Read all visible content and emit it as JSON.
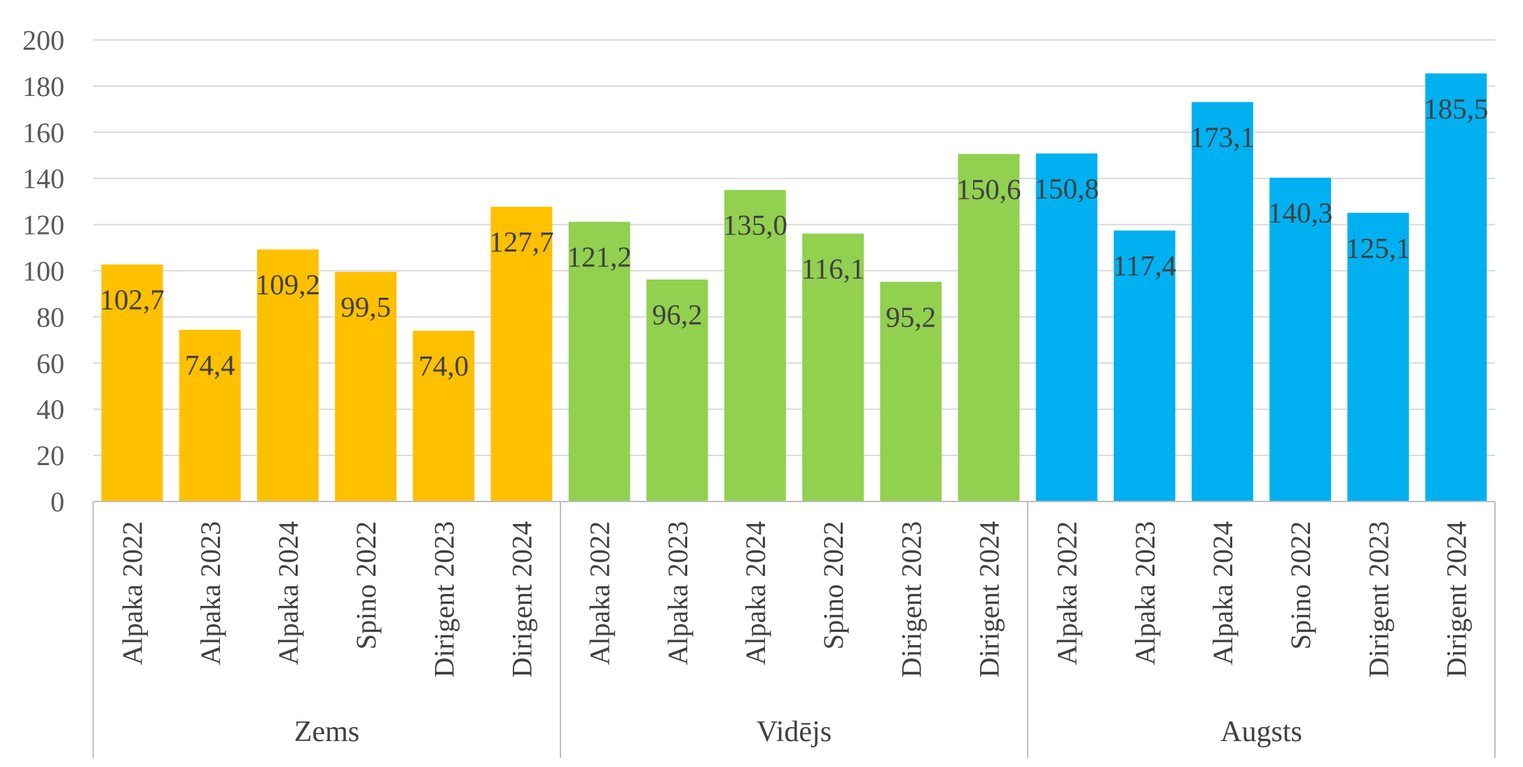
{
  "chart_data": {
    "type": "bar",
    "title": "",
    "xlabel": "",
    "ylabel": "",
    "ylim": [
      0,
      200
    ],
    "yticks": [
      0,
      20,
      40,
      60,
      80,
      100,
      120,
      140,
      160,
      180,
      200
    ],
    "grid": true,
    "legend": "none",
    "groups": [
      {
        "name": "Zems",
        "color": "#FFC000",
        "categories": [
          "Alpaka 2022",
          "Alpaka 2023",
          "Alpaka 2024",
          "Spino 2022",
          "Dirigent 2023",
          "Dirigent 2024"
        ],
        "values": [
          102.7,
          74.4,
          109.2,
          99.5,
          74.0,
          127.7
        ],
        "labels": [
          "102,7",
          "74,4",
          "109,2",
          "99,5",
          "74,0",
          "127,7"
        ]
      },
      {
        "name": "Vidējs",
        "color": "#92D050",
        "categories": [
          "Alpaka 2022",
          "Alpaka 2023",
          "Alpaka 2024",
          "Spino 2022",
          "Dirigent 2023",
          "Dirigent 2024"
        ],
        "values": [
          121.2,
          96.2,
          135.0,
          116.1,
          95.2,
          150.6
        ],
        "labels": [
          "121,2",
          "96,2",
          "135,0",
          "116,1",
          "95,2",
          "150,6"
        ]
      },
      {
        "name": "Augsts",
        "color": "#00B0F0",
        "categories": [
          "Alpaka 2022",
          "Alpaka 2023",
          "Alpaka 2024",
          "Spino 2022",
          "Dirigent 2023",
          "Dirigent 2024"
        ],
        "values": [
          150.8,
          117.4,
          173.1,
          140.3,
          125.1,
          185.5
        ],
        "labels": [
          "150,8",
          "117,4",
          "173,1",
          "140,3",
          "125,1",
          "185,5"
        ]
      }
    ],
    "colors": {
      "gridline": "#D9D9D9",
      "axis": "#BFBFBF"
    }
  }
}
